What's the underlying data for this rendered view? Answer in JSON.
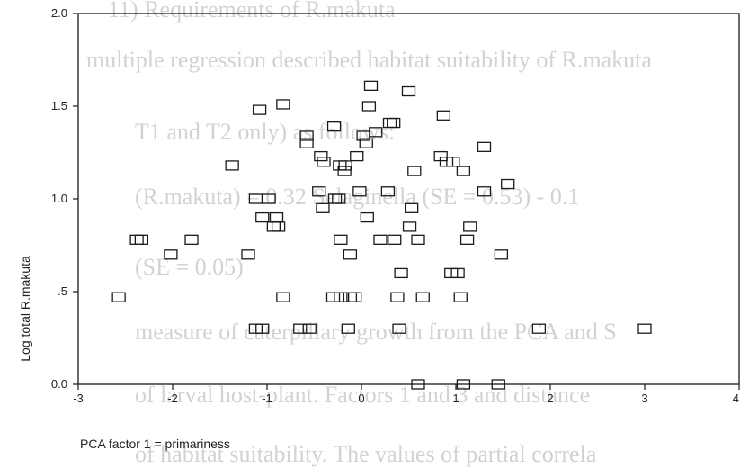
{
  "background_lines": [
    "11) Requirements of R.makuta",
    "multiple regression described habitat suitability of R.makuta",
    "T1 and T2 only) as follows:",
    "(R.makuta) = 0.32 Selaginella (SE = 0.53) - 0.1",
    "(SE = 0.05)",
    "measure of caterpillary growth from the PCA and S",
    "of larval host-plant. Factors 1 and 3 and distance",
    "of habitat suitability. The values of partial correla"
  ],
  "chart_data": {
    "type": "scatter",
    "xlabel": "PCA factor 1 = primariness",
    "ylabel": "Log total R.makuta",
    "xlim": [
      -3,
      4
    ],
    "ylim": [
      0,
      2
    ],
    "xticks": [
      -3,
      -2,
      -1,
      0,
      1,
      2,
      3,
      4
    ],
    "xtick_labels": [
      "-3",
      "-2",
      "-1",
      "0",
      "1",
      "2",
      "3",
      "4"
    ],
    "yticks": [
      0,
      0.5,
      1.0,
      1.5,
      2.0
    ],
    "ytick_labels": [
      "0.0",
      ".5",
      "1.0",
      "1.5",
      "2.0"
    ],
    "marker": "open-square",
    "points": [
      [
        0.1,
        1.61
      ],
      [
        0.5,
        1.58
      ],
      [
        -0.83,
        1.51
      ],
      [
        -1.08,
        1.48
      ],
      [
        0.87,
        1.45
      ],
      [
        0.08,
        1.5
      ],
      [
        0.34,
        1.41
      ],
      [
        0.3,
        1.41
      ],
      [
        -0.58,
        1.34
      ],
      [
        -0.29,
        1.39
      ],
      [
        0.15,
        1.36
      ],
      [
        -0.58,
        1.3
      ],
      [
        0.05,
        1.3
      ],
      [
        0.02,
        1.34
      ],
      [
        1.3,
        1.28
      ],
      [
        -0.43,
        1.23
      ],
      [
        -0.4,
        1.2
      ],
      [
        -0.05,
        1.23
      ],
      [
        0.84,
        1.23
      ],
      [
        0.9,
        1.2
      ],
      [
        0.97,
        1.2
      ],
      [
        -0.23,
        1.18
      ],
      [
        -0.18,
        1.15
      ],
      [
        -0.17,
        1.18
      ],
      [
        -1.37,
        1.18
      ],
      [
        0.56,
        1.15
      ],
      [
        1.08,
        1.15
      ],
      [
        1.55,
        1.08
      ],
      [
        -0.45,
        1.04
      ],
      [
        -0.02,
        1.04
      ],
      [
        0.28,
        1.04
      ],
      [
        1.3,
        1.04
      ],
      [
        -1.12,
        1.0
      ],
      [
        -0.98,
        1.0
      ],
      [
        -0.28,
        1.0
      ],
      [
        -0.24,
        1.0
      ],
      [
        -0.41,
        0.95
      ],
      [
        0.53,
        0.95
      ],
      [
        -1.05,
        0.9
      ],
      [
        -0.9,
        0.9
      ],
      [
        0.06,
        0.9
      ],
      [
        -0.93,
        0.85
      ],
      [
        -0.88,
        0.85
      ],
      [
        1.15,
        0.85
      ],
      [
        0.51,
        0.85
      ],
      [
        -2.38,
        0.78
      ],
      [
        -2.33,
        0.78
      ],
      [
        -1.8,
        0.78
      ],
      [
        -0.22,
        0.78
      ],
      [
        0.2,
        0.78
      ],
      [
        0.35,
        0.78
      ],
      [
        0.6,
        0.78
      ],
      [
        1.12,
        0.78
      ],
      [
        -2.02,
        0.7
      ],
      [
        -1.2,
        0.7
      ],
      [
        -0.12,
        0.7
      ],
      [
        1.48,
        0.7
      ],
      [
        0.42,
        0.6
      ],
      [
        0.95,
        0.6
      ],
      [
        1.02,
        0.6
      ],
      [
        -2.57,
        0.47
      ],
      [
        -0.83,
        0.47
      ],
      [
        -0.3,
        0.47
      ],
      [
        -0.22,
        0.47
      ],
      [
        -0.12,
        0.47
      ],
      [
        -0.07,
        0.47
      ],
      [
        0.38,
        0.47
      ],
      [
        0.65,
        0.47
      ],
      [
        1.05,
        0.47
      ],
      [
        -1.12,
        0.3
      ],
      [
        -1.05,
        0.3
      ],
      [
        -0.65,
        0.3
      ],
      [
        -0.55,
        0.3
      ],
      [
        -0.14,
        0.3
      ],
      [
        0.4,
        0.3
      ],
      [
        1.88,
        0.3
      ],
      [
        3.0,
        0.3
      ],
      [
        0.6,
        0.0
      ],
      [
        1.08,
        0.0
      ],
      [
        1.45,
        0.0
      ]
    ]
  }
}
